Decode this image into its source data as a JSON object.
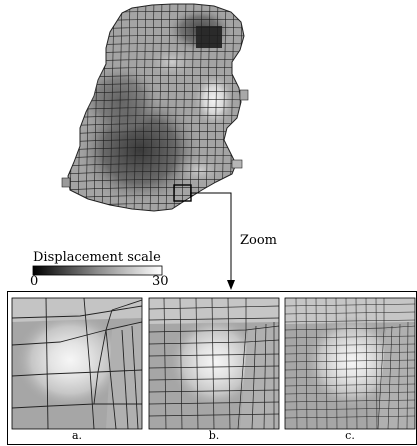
{
  "zoom_label": "Zoom",
  "scale": {
    "title": "Displacement scale",
    "min": "0",
    "max": "30"
  },
  "panels": [
    {
      "caption": "a."
    },
    {
      "caption": "b."
    },
    {
      "caption": "c."
    }
  ]
}
